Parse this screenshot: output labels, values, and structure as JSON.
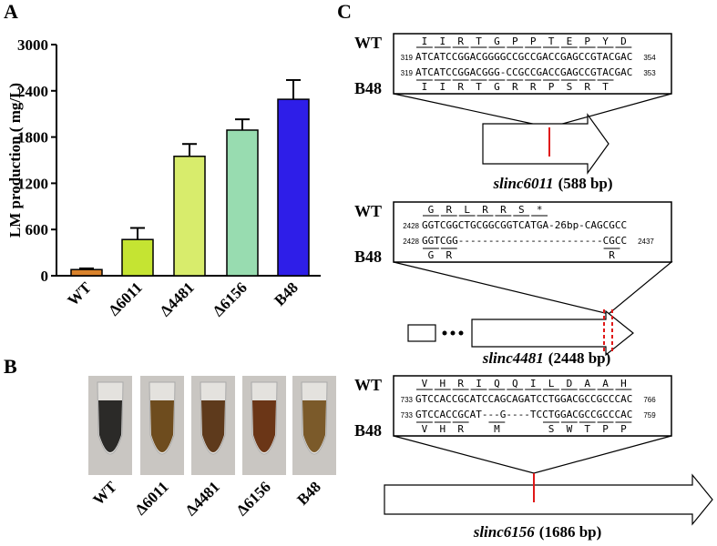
{
  "chart_data": {
    "type": "bar",
    "y_label": "LM production ( mg/L)",
    "categories": [
      "WT",
      "Δ6011",
      "Δ4481",
      "Δ6156",
      "B48"
    ],
    "values": [
      80,
      470,
      1550,
      1890,
      2290
    ],
    "errors": [
      15,
      150,
      160,
      140,
      250
    ],
    "colors": [
      "#d9822b",
      "#c5e432",
      "#d8ec6c",
      "#98dcb0",
      "#2e1ee8"
    ],
    "ylim": [
      0,
      3000
    ],
    "yticks": [
      0,
      600,
      1200,
      1800,
      2400,
      3000
    ]
  },
  "panel_labels": [
    "A",
    "B",
    "C"
  ],
  "panel_b": {
    "labels": [
      "WT",
      "Δ6011",
      "Δ4481",
      "Δ6156",
      "B48"
    ]
  },
  "panel_c": {
    "items": [
      {
        "wt": "WT",
        "mutant": "B48",
        "wt_aa": " I  I  R  T  G  P  P  T  E  P  Y  D",
        "wt_start": "319",
        "wt_seq": "ATCATCCGGACGGGGCCGCCGACCGAGCCGTACGAC",
        "wt_end": "354",
        "mut_start": "319",
        "mut_seq": "ATCATCCGGACGGG-CCGCCGACCGAGCCGTACGAC",
        "mut_end": "353",
        "mut_aa": " I  I  R  T  G  R  R  P  S  R  T",
        "gene": "slinc6011",
        "length": "(588  bp)"
      },
      {
        "wt": "WT",
        "mutant": "B48",
        "wt_aa": " G  R  L  R  R  S  *",
        "wt_start": "2428",
        "wt_seq": "GGTCGGCTGCGGCGGTCATGA-26bp-CAGCGCC",
        "mut_start": "2428",
        "mut_seq": "GGTCGG------------------------CGCC",
        "mut_end": "2437",
        "mut_aa": " G  R                          R",
        "gene": "slinc4481",
        "length": "(2448  bp)"
      },
      {
        "wt": "WT",
        "mutant": "B48",
        "wt_aa": " V  H  R  I  Q  Q  I  L  D  A  A  H",
        "wt_start": "733",
        "wt_seq": "GTCCACCGCATCCAGCAGATCCTGGACGCCGCCCAC",
        "wt_end": "766",
        "mut_start": "733",
        "mut_seq": "GTCCACCGCAT---G----TCCTGGACGCCGCCCAC",
        "mut_end": "759",
        "mut_aa": " V  H  R     M        S  W  T  P  P",
        "gene": "slinc6156",
        "length": "(1686  bp)"
      }
    ]
  }
}
